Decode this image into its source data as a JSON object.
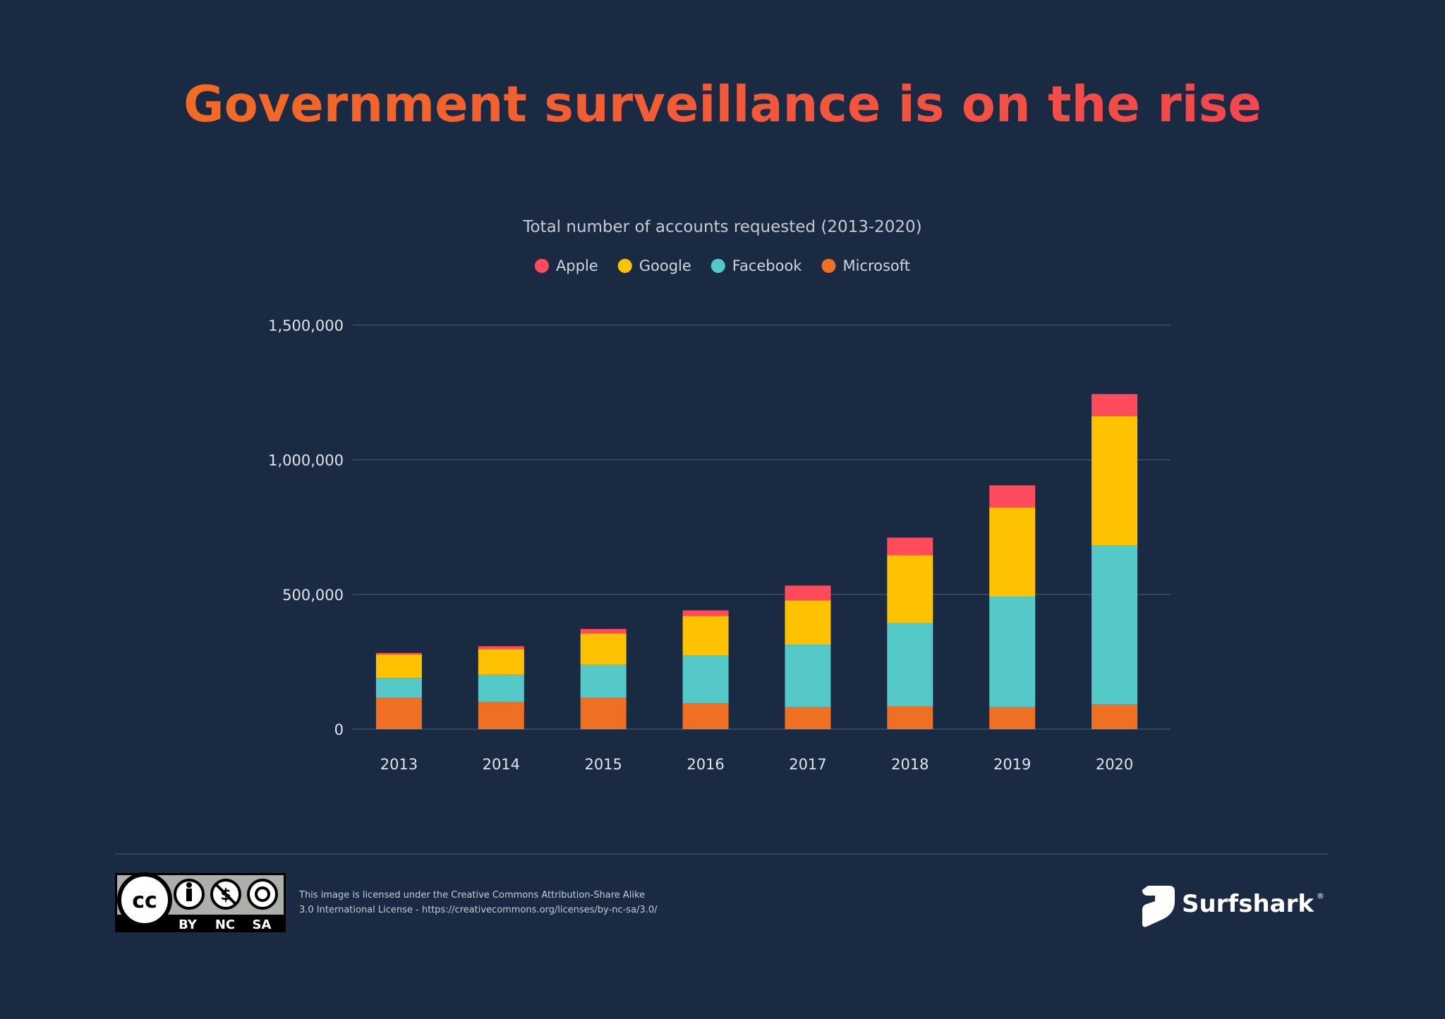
{
  "chart_data": {
    "type": "bar",
    "stacked": true,
    "title": "Government surveillance is on the rise",
    "subtitle": "Total number of accounts requested (2013-2020)",
    "categories": [
      "2013",
      "2014",
      "2015",
      "2016",
      "2017",
      "2018",
      "2019",
      "2020"
    ],
    "series": [
      {
        "name": "Microsoft",
        "color": "#f07023",
        "values": [
          116000,
          102000,
          116000,
          96000,
          82000,
          85000,
          82000,
          92000
        ]
      },
      {
        "name": "Facebook",
        "color": "#55c8c8",
        "values": [
          75000,
          100000,
          123000,
          177000,
          232000,
          308000,
          410000,
          591000
        ]
      },
      {
        "name": "Google",
        "color": "#ffc200",
        "values": [
          86000,
          95000,
          116000,
          147000,
          164000,
          253000,
          331000,
          479000
        ]
      },
      {
        "name": "Apple",
        "color": "#ff4b5c",
        "values": [
          6000,
          11000,
          17000,
          21000,
          55000,
          65000,
          82000,
          82000
        ]
      }
    ],
    "legend_order": [
      "Apple",
      "Google",
      "Facebook",
      "Microsoft"
    ],
    "legend_placement": "top-center",
    "ylim": [
      0,
      1500000
    ],
    "yticks": [
      "0",
      "500,000",
      "1,000,000",
      "1,500,000"
    ],
    "ytick_values": [
      0,
      500000,
      1000000,
      1500000
    ],
    "grid": true
  },
  "footer": {
    "license_line1": "This image is licensed under the Creative Commons Attribution-Share Alike",
    "license_line2": "3.0 International License - https://creativecommons.org/licenses/by-nc-sa/3.0/",
    "cc_badge": {
      "labels": [
        "BY",
        "NC",
        "SA"
      ]
    },
    "brand": "Surfshark"
  },
  "colors": {
    "background": "#1a2a42",
    "title_start": "#f26b23",
    "title_end": "#f2474f"
  }
}
